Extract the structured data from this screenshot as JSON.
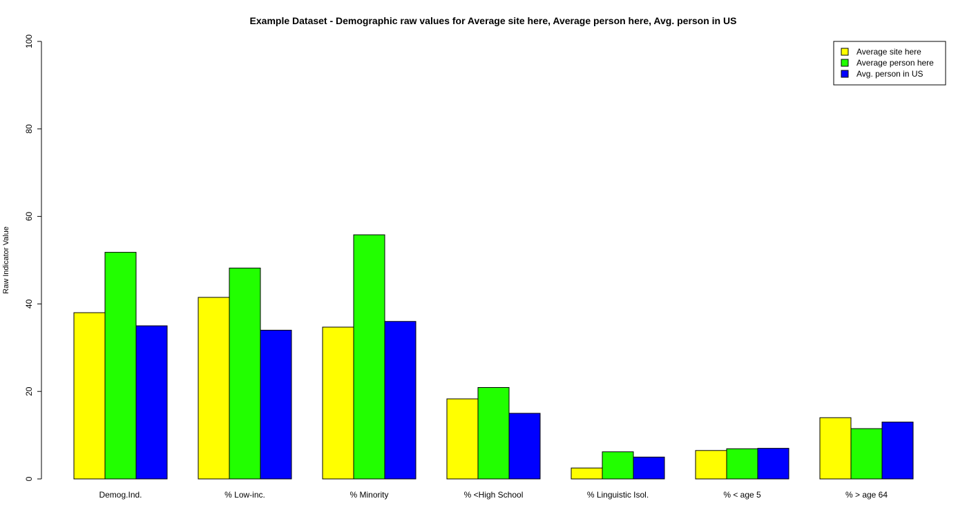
{
  "chart_data": {
    "type": "bar",
    "title": "Example Dataset - Demographic raw values for Average site here, Average person here, Avg. person in US",
    "xlabel": "",
    "ylabel": "Raw Indicator Value",
    "ylim": [
      0,
      100
    ],
    "yticks": [
      0,
      20,
      40,
      60,
      80,
      100
    ],
    "grid": false,
    "legend_position": "top-right",
    "categories": [
      "Demog.Ind.",
      "% Low-inc.",
      "% Minority",
      "% <High School",
      "% Linguistic Isol.",
      "% < age 5",
      "% > age 64"
    ],
    "series": [
      {
        "name": "Average site here",
        "color": "#ffff00",
        "values": [
          38,
          41.5,
          34.7,
          18.3,
          2.5,
          6.5,
          14
        ]
      },
      {
        "name": "Average person here",
        "color": "#22ff00",
        "values": [
          51.8,
          48.2,
          55.8,
          20.9,
          6.2,
          6.9,
          11.5
        ]
      },
      {
        "name": "Avg. person in US",
        "color": "#0000ff",
        "values": [
          35,
          34,
          36,
          15,
          5,
          7,
          13
        ]
      }
    ]
  }
}
